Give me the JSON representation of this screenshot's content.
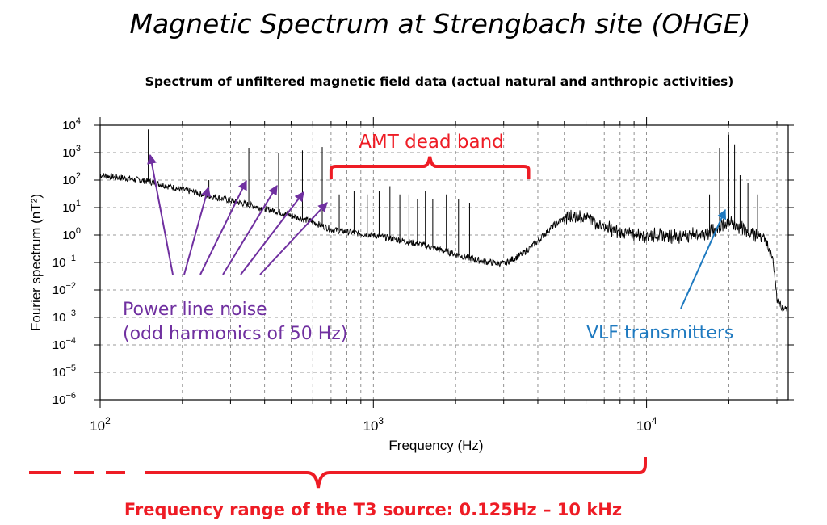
{
  "title": "Magnetic Spectrum at Strengbach site (OHGE)",
  "subtitle": "Spectrum of unfiltered magnetic field data (actual natural and anthropic activities)",
  "colors": {
    "annotation_red": "#ee1c25",
    "annotation_purple": "#7030a0",
    "annotation_blue": "#1f7ac0",
    "trace": "#000000",
    "grid": "#666666"
  },
  "chart_data": {
    "type": "line",
    "title": "Spectrum of unfiltered magnetic field data (actual natural and anthropic activities)",
    "xlabel": "Frequency (Hz)",
    "ylabel": "Fourier spectrum (nT²)",
    "xscale": "log",
    "yscale": "log",
    "xlim": [
      100,
      33000
    ],
    "ylim": [
      1e-06,
      10000
    ],
    "grid": true,
    "x_ticks": [
      {
        "value": 100,
        "base": "10",
        "exp": "2"
      },
      {
        "value": 1000,
        "base": "10",
        "exp": "3"
      },
      {
        "value": 10000,
        "base": "10",
        "exp": "4"
      }
    ],
    "y_ticks": [
      {
        "value": 10000,
        "base": "10",
        "exp": "4"
      },
      {
        "value": 1000,
        "base": "10",
        "exp": "3"
      },
      {
        "value": 100,
        "base": "10",
        "exp": "2"
      },
      {
        "value": 10,
        "base": "10",
        "exp": "1"
      },
      {
        "value": 1,
        "base": "10",
        "exp": "0"
      },
      {
        "value": 0.1,
        "base": "10",
        "exp": "−1"
      },
      {
        "value": 0.01,
        "base": "10",
        "exp": "−2"
      },
      {
        "value": 0.001,
        "base": "10",
        "exp": "−3"
      },
      {
        "value": 0.0001,
        "base": "10",
        "exp": "−4"
      },
      {
        "value": 1e-05,
        "base": "10",
        "exp": "−5"
      },
      {
        "value": 1e-06,
        "base": "10",
        "exp": "−6"
      }
    ],
    "series": [
      {
        "background": [
          [
            100,
            150
          ],
          [
            130,
            110
          ],
          [
            150,
            90
          ],
          [
            200,
            45
          ],
          [
            300,
            18
          ],
          [
            450,
            7
          ],
          [
            600,
            3
          ],
          [
            700,
            1.6
          ],
          [
            850,
            1.2
          ],
          [
            1000,
            1.0
          ],
          [
            1500,
            0.45
          ],
          [
            2000,
            0.2
          ],
          [
            2500,
            0.11
          ],
          [
            3000,
            0.09
          ],
          [
            3500,
            0.2
          ],
          [
            4000,
            0.6
          ],
          [
            4500,
            2
          ],
          [
            5000,
            4
          ],
          [
            5500,
            5
          ],
          [
            6000,
            4.5
          ],
          [
            7000,
            2
          ],
          [
            8000,
            1.2
          ],
          [
            10000,
            1
          ],
          [
            13000,
            0.9
          ],
          [
            17000,
            1.2
          ],
          [
            20000,
            3
          ],
          [
            24000,
            1.2
          ],
          [
            27000,
            0.8
          ],
          [
            29000,
            0.15
          ],
          [
            30000,
            0.005
          ],
          [
            31500,
            0.002
          ],
          [
            32500,
            0.002
          ]
        ],
        "peaks": [
          [
            150,
            7000
          ],
          [
            250,
            100
          ],
          [
            350,
            1500
          ],
          [
            450,
            1000
          ],
          [
            550,
            1200
          ],
          [
            650,
            1600
          ],
          [
            750,
            30
          ],
          [
            850,
            40
          ],
          [
            950,
            30
          ],
          [
            1050,
            40
          ],
          [
            1150,
            60
          ],
          [
            1250,
            30
          ],
          [
            1350,
            30
          ],
          [
            1450,
            20
          ],
          [
            1550,
            40
          ],
          [
            1650,
            20
          ],
          [
            1850,
            30
          ],
          [
            2050,
            20
          ],
          [
            2250,
            15
          ],
          [
            17000,
            30
          ],
          [
            18500,
            1500
          ],
          [
            20000,
            4500
          ],
          [
            21000,
            2000
          ],
          [
            22000,
            150
          ],
          [
            23500,
            80
          ],
          [
            25500,
            30
          ]
        ]
      }
    ],
    "annotations": [
      {
        "id": "amt",
        "text": "AMT dead band",
        "x_range": [
          700,
          3700
        ]
      },
      {
        "id": "power1",
        "text": "Power line noise"
      },
      {
        "id": "power2",
        "text": "(odd harmonics of 50 Hz)"
      },
      {
        "id": "vlf",
        "text": "VLF transmitters",
        "points_to": [
          20000,
          10
        ]
      },
      {
        "id": "t3",
        "text": "Frequency range of the T3 source: 0.125Hz – 10 kHz",
        "x_range": [
          0.125,
          10000
        ]
      }
    ]
  }
}
